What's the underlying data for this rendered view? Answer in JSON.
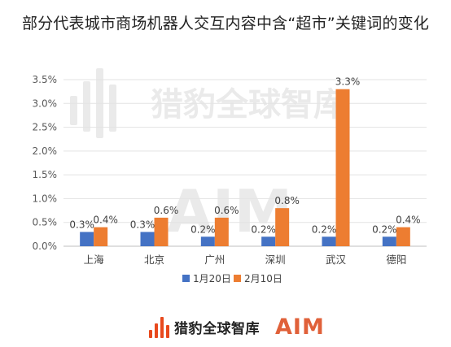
{
  "chart_data": {
    "type": "bar",
    "title": "部分代表城市商场机器人交互内容中含“超市”关键词的变化",
    "categories": [
      "上海",
      "北京",
      "广州",
      "深圳",
      "武汉",
      "德阳"
    ],
    "series": [
      {
        "name": "1月20日",
        "values": [
          0.3,
          0.3,
          0.2,
          0.2,
          0.2,
          0.2
        ],
        "labels": [
          "0.3%",
          "0.3%",
          "0.2%",
          "0.2%",
          "0.2%",
          "0.2%"
        ],
        "color": "#4472c4"
      },
      {
        "name": "2月10日",
        "values": [
          0.4,
          0.6,
          0.6,
          0.8,
          3.3,
          0.4
        ],
        "labels": [
          "0.4%",
          "0.6%",
          "0.6%",
          "0.8%",
          "3.3%",
          "0.4%"
        ],
        "color": "#ed7d31"
      }
    ],
    "yticks": [
      "0.0%",
      "0.5%",
      "1.0%",
      "1.5%",
      "2.0%",
      "2.5%",
      "3.0%",
      "3.5%"
    ],
    "ylim": [
      0,
      3.5
    ],
    "grid": true,
    "legend_position": "bottom"
  },
  "watermark": {
    "text": "猎豹全球智库",
    "logo": "AIM"
  },
  "footer": {
    "brand": "猎豹全球智库",
    "logo": "AIM",
    "bar_color": "#e8491d",
    "logo_color": "#e0613a"
  }
}
